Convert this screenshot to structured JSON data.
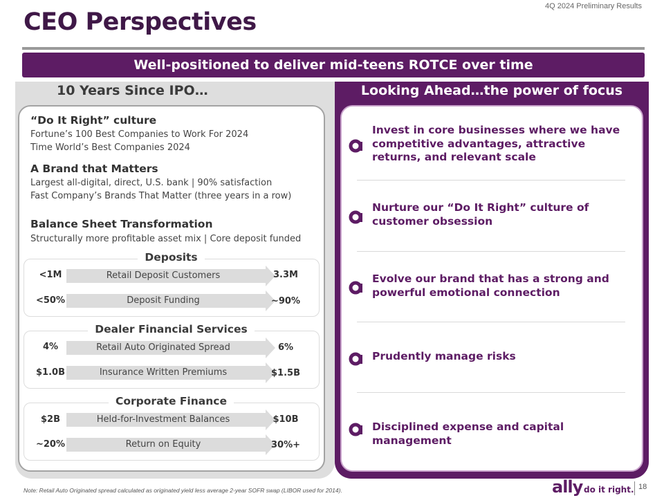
{
  "header": {
    "top_label": "4Q 2024 Preliminary Results",
    "title": "CEO Perspectives",
    "banner": "Well-positioned to deliver mid-teens ROTCE over time"
  },
  "left": {
    "heading": "10 Years Since IPO…",
    "sections": [
      {
        "title": "“Do It Right” culture",
        "lines": [
          "Fortune’s 100 Best Companies to Work For 2024",
          "Time World’s Best Companies 2024"
        ]
      },
      {
        "title": "A Brand that Matters",
        "lines": [
          "Largest all-digital, direct, U.S. bank | 90% satisfaction",
          "Fast Company’s Brands That Matter (three years in a row)"
        ]
      },
      {
        "title": "Balance Sheet Transformation",
        "lines": [
          "Structurally more profitable asset mix | Core deposit funded"
        ]
      }
    ],
    "groups": [
      {
        "title": "Deposits",
        "rows": [
          {
            "from": "<1M",
            "label": "Retail Deposit Customers",
            "to": "3.3M"
          },
          {
            "from": "<50%",
            "label": "Deposit Funding",
            "to": "~90%"
          }
        ]
      },
      {
        "title": "Dealer Financial Services",
        "rows": [
          {
            "from": "4%",
            "label": "Retail Auto Originated Spread",
            "to": "6%"
          },
          {
            "from": "$1.0B",
            "label": "Insurance Written Premiums",
            "to": "$1.5B"
          }
        ]
      },
      {
        "title": "Corporate Finance",
        "rows": [
          {
            "from": "$2B",
            "label": "Held-for-Investment Balances",
            "to": "$10B"
          },
          {
            "from": "~20%",
            "label": "Return on Equity",
            "to": "30%+"
          }
        ]
      }
    ]
  },
  "right": {
    "heading": "Looking Ahead…the power of focus",
    "items": [
      "Invest in core businesses where we have competitive advantages, attractive returns, and relevant scale",
      "Nurture our “Do It Right” culture of customer obsession",
      "Evolve our brand that has a strong and powerful emotional connection",
      "Prudently manage risks",
      "Disciplined expense and capital management"
    ]
  },
  "footer": {
    "note": "Note: Retail Auto Originated spread calculated as originated yield less average 2-year SOFR swap (LIBOR used for 2014).",
    "logo": "ally",
    "tagline": "do it right.",
    "page": "18"
  },
  "colors": {
    "brand_purple": "#5d1c64",
    "title_purple": "#3f1847",
    "panel_gray": "#dedede"
  },
  "icons": {
    "focus_bullet": "ally-a-icon"
  }
}
